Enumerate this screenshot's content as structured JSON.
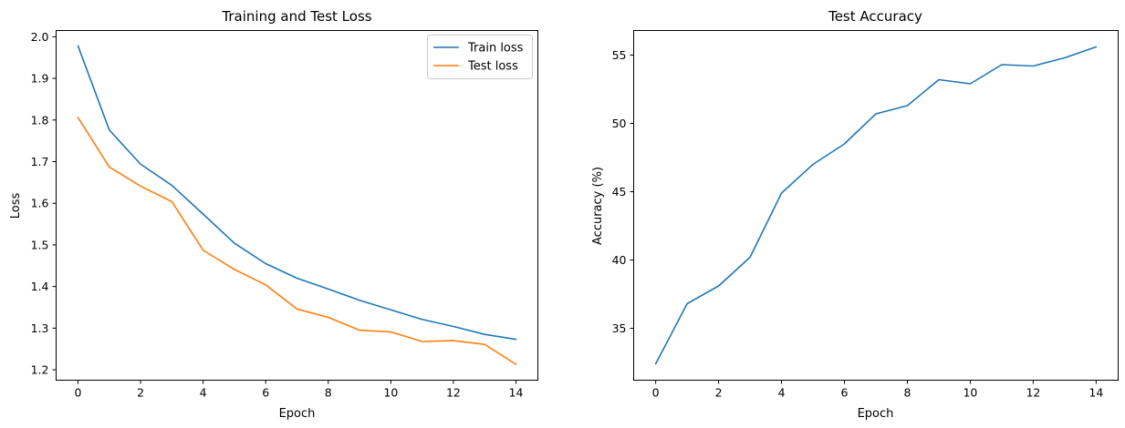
{
  "chart_data": [
    {
      "type": "line",
      "title": "Training and Test Loss",
      "xlabel": "Epoch",
      "ylabel": "Loss",
      "xlim": [
        -0.7,
        14.7
      ],
      "ylim": [
        1.175,
        2.015
      ],
      "xticks": [
        0,
        2,
        4,
        6,
        8,
        10,
        12,
        14
      ],
      "yticks": [
        1.2,
        1.3,
        1.4,
        1.5,
        1.6,
        1.7,
        1.8,
        1.9,
        2.0
      ],
      "ytick_labels": [
        "1.2",
        "1.3",
        "1.4",
        "1.5",
        "1.6",
        "1.7",
        "1.8",
        "1.9",
        "2.0"
      ],
      "grid": false,
      "legend": "top-right",
      "x": [
        0,
        1,
        2,
        3,
        4,
        5,
        6,
        7,
        8,
        9,
        10,
        11,
        12,
        13,
        14
      ],
      "series": [
        {
          "name": "Train loss",
          "color": "#1f77b4",
          "values": [
            1.978,
            1.776,
            1.694,
            1.643,
            1.574,
            1.504,
            1.455,
            1.42,
            1.394,
            1.367,
            1.344,
            1.321,
            1.304,
            1.285,
            1.273
          ]
        },
        {
          "name": "Test loss",
          "color": "#ff7f0e",
          "values": [
            1.806,
            1.687,
            1.641,
            1.604,
            1.487,
            1.441,
            1.404,
            1.346,
            1.326,
            1.295,
            1.291,
            1.268,
            1.27,
            1.261,
            1.213
          ]
        }
      ]
    },
    {
      "type": "line",
      "title": "Test Accuracy",
      "xlabel": "Epoch",
      "ylabel": "Accuracy (%)",
      "xlim": [
        -0.7,
        14.7
      ],
      "ylim": [
        31.2,
        56.8
      ],
      "xticks": [
        0,
        2,
        4,
        6,
        8,
        10,
        12,
        14
      ],
      "yticks": [
        35,
        40,
        45,
        50,
        55
      ],
      "ytick_labels": [
        "35",
        "40",
        "45",
        "50",
        "55"
      ],
      "grid": false,
      "legend": "none",
      "x": [
        0,
        1,
        2,
        3,
        4,
        5,
        6,
        7,
        8,
        9,
        10,
        11,
        12,
        13,
        14
      ],
      "series": [
        {
          "color": "#1f77b4",
          "values": [
            32.4,
            36.8,
            38.1,
            40.2,
            44.9,
            47.0,
            48.5,
            50.7,
            51.3,
            53.2,
            52.9,
            54.3,
            54.2,
            54.8,
            55.6
          ]
        }
      ]
    }
  ]
}
